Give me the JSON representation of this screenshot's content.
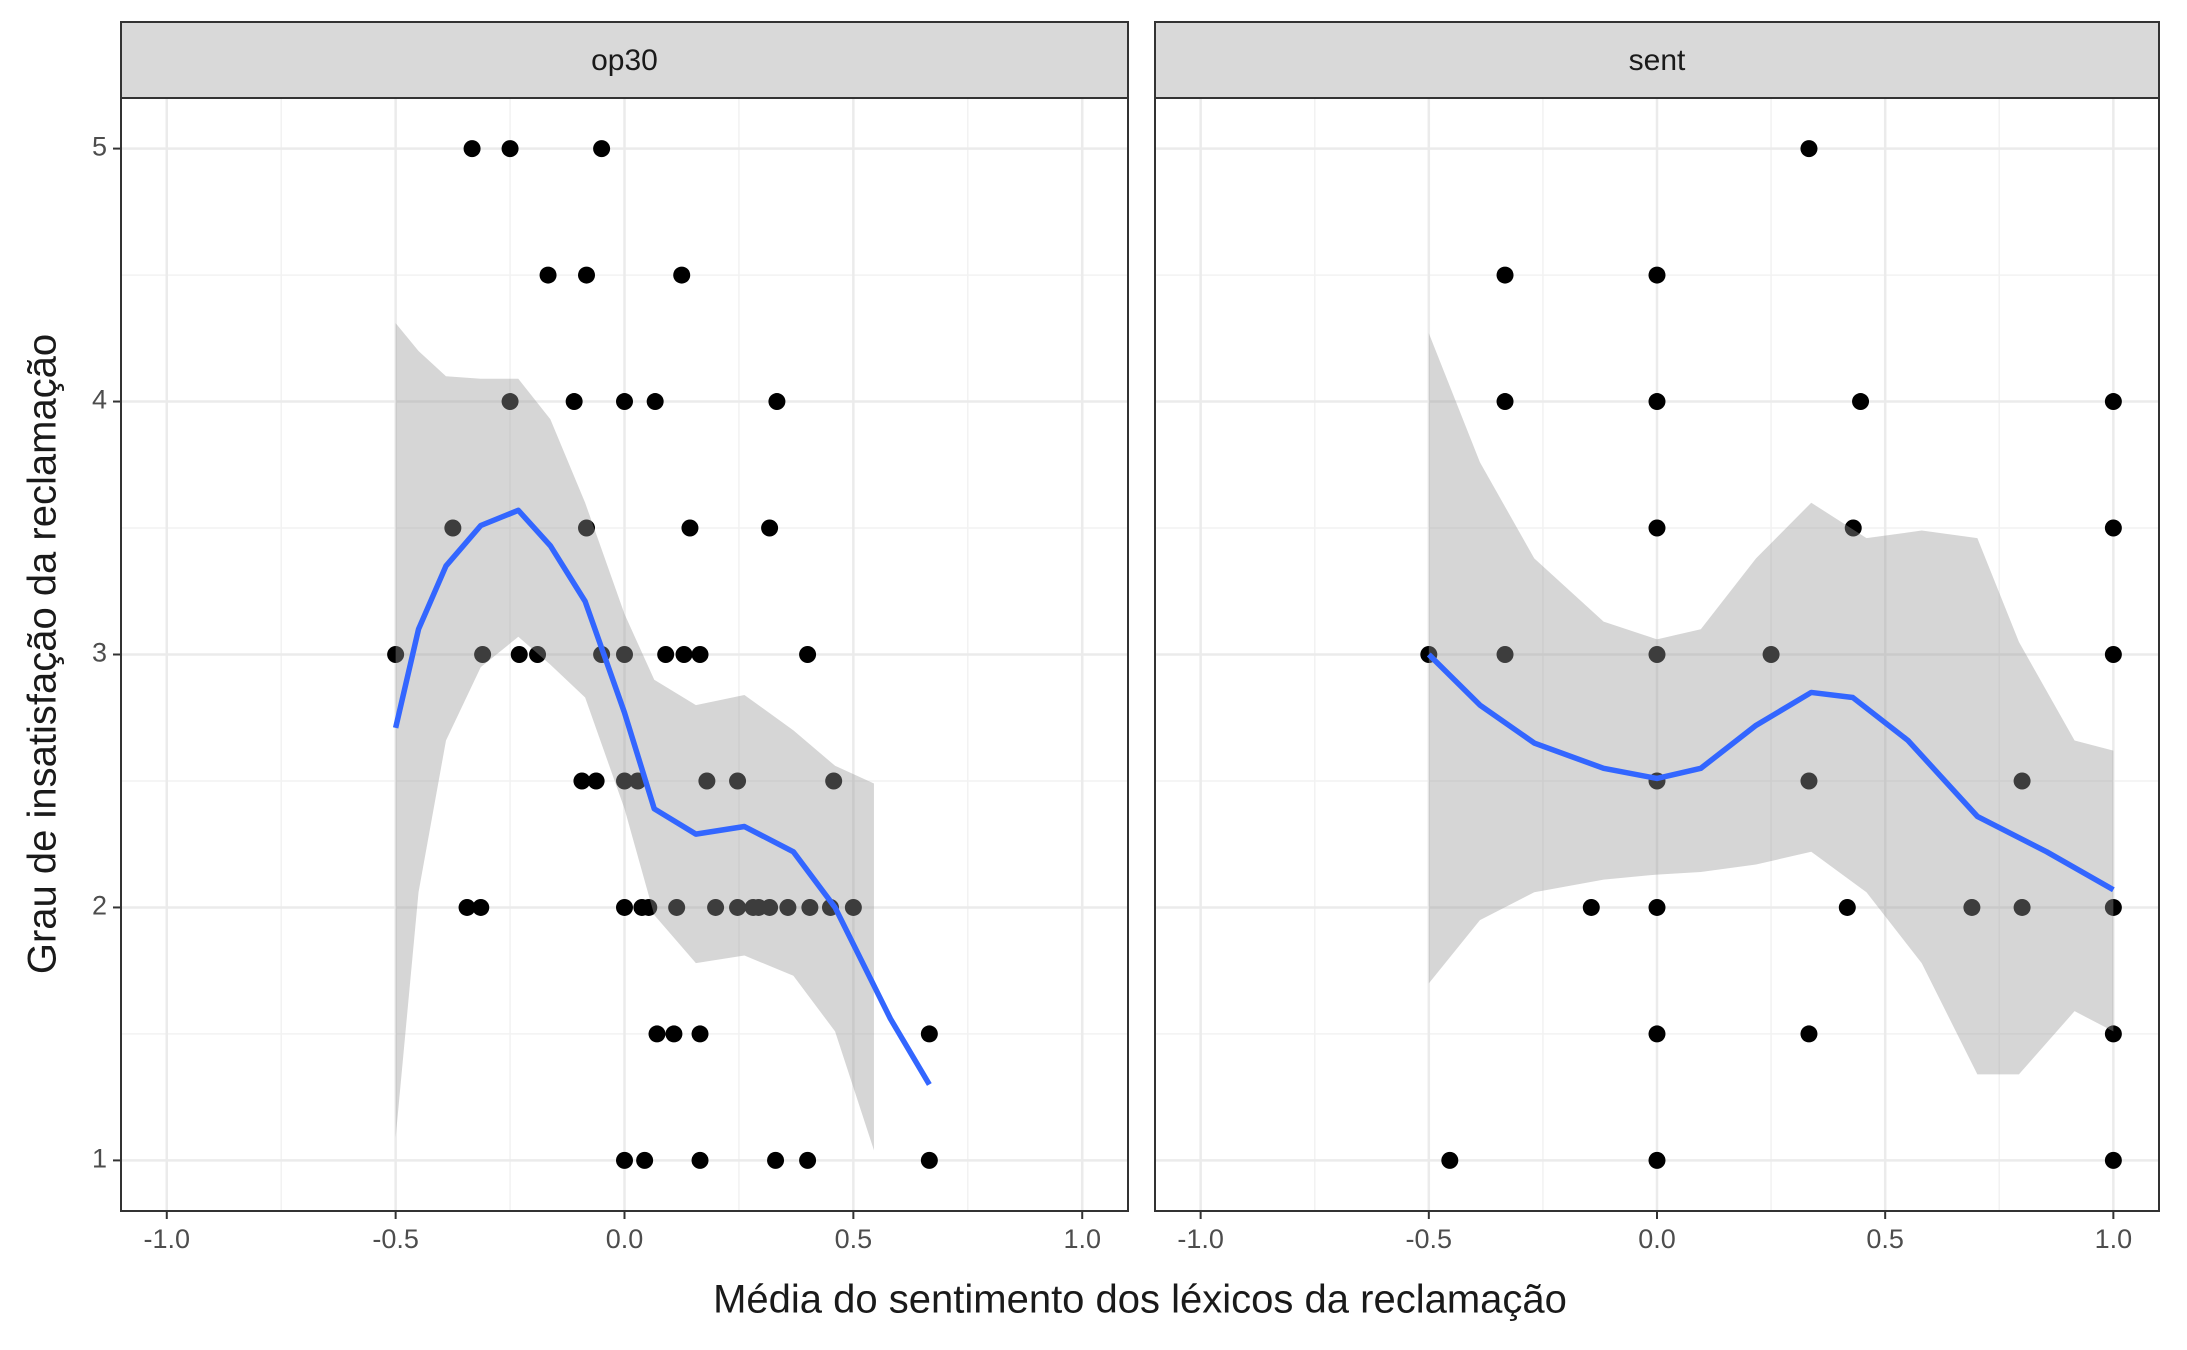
{
  "chart_data": [
    {
      "type": "scatter",
      "title": "op30",
      "xlabel": "Média do sentimento dos léxicos da reclamação",
      "ylabel": "Grau de insatisfação da reclamação",
      "xlim": [
        -1.1,
        1.1
      ],
      "xticks": [
        {
          "value": -1,
          "label": "-1.0"
        },
        {
          "value": -0.5,
          "label": "-0.5"
        },
        {
          "value": 0,
          "label": "0.0"
        },
        {
          "value": 0.5,
          "label": "0.5"
        },
        {
          "value": 1,
          "label": "1.0"
        }
      ],
      "ylim": [
        0.8,
        5.2
      ],
      "yticks": [
        1,
        2,
        3,
        4,
        5
      ],
      "grid": true,
      "points": {
        "color": "#000000",
        "x": [
          -0.333,
          -0.25,
          -0.05,
          -0.167,
          -0.083,
          0.125,
          -0.25,
          -0.11,
          0,
          0.067,
          0.333,
          -0.375,
          -0.083,
          0.143,
          0.317,
          -0.5,
          -0.31,
          -0.23,
          -0.19,
          -0.05,
          0,
          0.09,
          0.13,
          0.165,
          0.4,
          -0.093,
          -0.062,
          0,
          0.029,
          0.18,
          0.247,
          0.457,
          -0.344,
          -0.314,
          0,
          0.038,
          0.053,
          0.114,
          0.199,
          0.247,
          0.281,
          0.293,
          0.317,
          0.357,
          0.405,
          0.45,
          0.5,
          0.071,
          0.108,
          0.165,
          0.666,
          0,
          0.044,
          0.165,
          0.33,
          0.4,
          0.666
        ],
        "y": [
          5,
          5,
          5,
          4.5,
          4.5,
          4.5,
          4,
          4,
          4,
          4,
          4,
          3.5,
          3.5,
          3.5,
          3.5,
          3,
          3,
          3,
          3,
          3,
          3,
          3,
          3,
          3,
          3,
          2.5,
          2.5,
          2.5,
          2.5,
          2.5,
          2.5,
          2.5,
          2,
          2,
          2,
          2,
          2,
          2,
          2,
          2,
          2,
          2,
          2,
          2,
          2,
          2,
          2,
          1.5,
          1.5,
          1.5,
          1.5,
          1,
          1,
          1,
          1,
          1,
          1
        ]
      },
      "smooth": {
        "color": "#3366ff",
        "x": [
          -0.5,
          -0.45,
          -0.39,
          -0.314,
          -0.232,
          -0.162,
          -0.086,
          0,
          0.065,
          0.156,
          0.262,
          0.369,
          0.46,
          0.581,
          0.666
        ],
        "y": [
          2.71,
          3.1,
          3.35,
          3.51,
          3.57,
          3.43,
          3.21,
          2.77,
          2.39,
          2.29,
          2.32,
          2.22,
          2.0,
          1.56,
          1.3
        ]
      },
      "ribbon": {
        "color": "#999999",
        "x": [
          -0.5,
          -0.45,
          -0.39,
          -0.314,
          -0.232,
          -0.162,
          -0.086,
          0,
          0.065,
          0.156,
          0.262,
          0.369,
          0.46,
          0.545
        ],
        "upper": [
          4.31,
          4.2,
          4.1,
          4.09,
          4.09,
          3.93,
          3.6,
          3.16,
          2.9,
          2.8,
          2.84,
          2.7,
          2.56,
          2.49
        ],
        "lower": [
          1.09,
          2.06,
          2.66,
          2.95,
          3.07,
          2.96,
          2.83,
          2.39,
          1.97,
          1.78,
          1.81,
          1.73,
          1.51,
          1.04
        ]
      }
    },
    {
      "type": "scatter",
      "title": "sent",
      "xlim": [
        -1.1,
        1.1
      ],
      "xticks": [
        {
          "value": -1,
          "label": "-1.0"
        },
        {
          "value": -0.5,
          "label": "-0.5"
        },
        {
          "value": 0,
          "label": "0.0"
        },
        {
          "value": 0.5,
          "label": "0.5"
        },
        {
          "value": 1,
          "label": "1.0"
        }
      ],
      "ylim": [
        0.8,
        5.2
      ],
      "yticks": [
        1,
        2,
        3,
        4,
        5
      ],
      "grid": true,
      "points": {
        "color": "#000000",
        "x": [
          0.333,
          -0.333,
          0,
          -0.333,
          0,
          0.446,
          1,
          0,
          0.43,
          1,
          -0.5,
          -0.333,
          0,
          0.25,
          1,
          0,
          0.333,
          0.8,
          -0.144,
          0,
          0.417,
          0.69,
          0.8,
          1,
          0,
          0.333,
          1,
          -0.454,
          0,
          1
        ],
        "y": [
          5,
          4.5,
          4.5,
          4,
          4,
          4,
          4,
          3.5,
          3.5,
          3.5,
          3,
          3,
          3,
          3,
          3,
          2.5,
          2.5,
          2.5,
          2,
          2,
          2,
          2,
          2,
          2,
          1.5,
          1.5,
          1.5,
          1,
          1,
          1
        ]
      },
      "smooth": {
        "color": "#3366ff",
        "x": [
          -0.5,
          -0.388,
          -0.269,
          -0.117,
          0,
          0.096,
          0.217,
          0.338,
          0.429,
          0.55,
          0.702,
          0.854,
          1
        ],
        "y": [
          3.0,
          2.8,
          2.65,
          2.55,
          2.51,
          2.55,
          2.72,
          2.85,
          2.83,
          2.66,
          2.36,
          2.22,
          2.07
        ]
      },
      "ribbon": {
        "color": "#999999",
        "x": [
          -0.5,
          -0.388,
          -0.269,
          -0.117,
          0,
          0.096,
          0.217,
          0.338,
          0.459,
          0.58,
          0.702,
          0.793,
          0.915,
          1
        ],
        "upper": [
          4.27,
          3.76,
          3.38,
          3.13,
          3.06,
          3.1,
          3.38,
          3.6,
          3.46,
          3.49,
          3.46,
          3.05,
          2.66,
          2.62
        ],
        "lower": [
          1.7,
          1.95,
          2.06,
          2.11,
          2.13,
          2.14,
          2.17,
          2.22,
          2.06,
          1.78,
          1.34,
          1.34,
          1.59,
          1.51
        ]
      }
    }
  ]
}
